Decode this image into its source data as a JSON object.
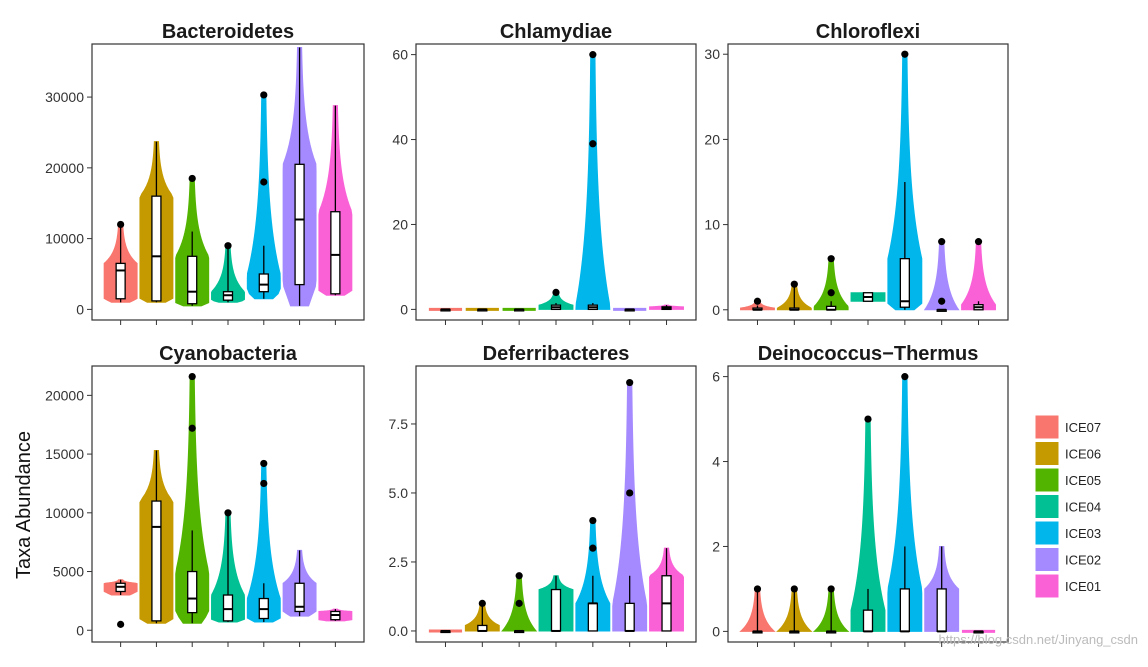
{
  "ylabel": "Taxa Abundance",
  "watermark": "https://blog.csdn.net/Jinyang_csdn",
  "groups": [
    "ICE07",
    "ICE06",
    "ICE05",
    "ICE04",
    "ICE03",
    "ICE02",
    "ICE01"
  ],
  "legend": [
    {
      "label": "ICE07",
      "color": "#F8766D"
    },
    {
      "label": "ICE06",
      "color": "#C49A00"
    },
    {
      "label": "ICE05",
      "color": "#53B400"
    },
    {
      "label": "ICE04",
      "color": "#00C094"
    },
    {
      "label": "ICE03",
      "color": "#00B6EB"
    },
    {
      "label": "ICE02",
      "color": "#A58AFF"
    },
    {
      "label": "ICE01",
      "color": "#FB61D7"
    }
  ],
  "chart_data": [
    {
      "type": "violin",
      "title": "Bacteroidetes",
      "ylim": [
        -1500,
        37500
      ],
      "yticks": [
        0,
        10000,
        20000,
        30000
      ],
      "ytick_labels": [
        "0",
        "10000",
        "20000",
        "30000"
      ],
      "series": [
        {
          "name": "ICE07",
          "min": 1000,
          "q1": 1500,
          "median": 5500,
          "q3": 6500,
          "max": 12000,
          "outliers": [
            12000
          ]
        },
        {
          "name": "ICE06",
          "min": 1000,
          "q1": 1200,
          "median": 7500,
          "q3": 16000,
          "max": 23700,
          "outliers": []
        },
        {
          "name": "ICE05",
          "min": 500,
          "q1": 800,
          "median": 2500,
          "q3": 7500,
          "max": 11000,
          "outliers": [
            18500
          ]
        },
        {
          "name": "ICE04",
          "min": 1000,
          "q1": 1300,
          "median": 2000,
          "q3": 2500,
          "max": 9000,
          "outliers": [
            9000
          ]
        },
        {
          "name": "ICE03",
          "min": 1500,
          "q1": 2500,
          "median": 3500,
          "q3": 5000,
          "max": 9000,
          "outliers": [
            18000,
            30300
          ]
        },
        {
          "name": "ICE02",
          "min": 500,
          "q1": 3500,
          "median": 12700,
          "q3": 20500,
          "max": 37000,
          "outliers": []
        },
        {
          "name": "ICE01",
          "min": 2000,
          "q1": 2200,
          "median": 7700,
          "q3": 13800,
          "max": 28800,
          "outliers": []
        }
      ]
    },
    {
      "type": "violin",
      "title": "Chlamydiae",
      "ylim": [
        -2.5,
        62.5
      ],
      "yticks": [
        0,
        20,
        40,
        60
      ],
      "ytick_labels": [
        "0",
        "20",
        "40",
        "60"
      ],
      "series": [
        {
          "name": "ICE07",
          "min": 0,
          "q1": 0,
          "median": 0,
          "q3": 0,
          "max": 0,
          "outliers": []
        },
        {
          "name": "ICE06",
          "min": 0,
          "q1": 0,
          "median": 0,
          "q3": 0,
          "max": 0,
          "outliers": []
        },
        {
          "name": "ICE05",
          "min": 0,
          "q1": 0,
          "median": 0,
          "q3": 0,
          "max": 0,
          "outliers": []
        },
        {
          "name": "ICE04",
          "min": 0,
          "q1": 0,
          "median": 0.5,
          "q3": 1,
          "max": 1.5,
          "outliers": [
            4
          ]
        },
        {
          "name": "ICE03",
          "min": 0,
          "q1": 0,
          "median": 0.5,
          "q3": 1,
          "max": 1.5,
          "outliers": [
            39,
            60
          ]
        },
        {
          "name": "ICE02",
          "min": 0,
          "q1": 0,
          "median": 0,
          "q3": 0,
          "max": 0,
          "outliers": []
        },
        {
          "name": "ICE01",
          "min": 0,
          "q1": 0,
          "median": 0.3,
          "q3": 0.6,
          "max": 1,
          "outliers": []
        }
      ]
    },
    {
      "type": "violin",
      "title": "Chloroflexi",
      "ylim": [
        -1.2,
        31.2
      ],
      "yticks": [
        0,
        10,
        20,
        30
      ],
      "ytick_labels": [
        "0",
        "10",
        "20",
        "30"
      ],
      "series": [
        {
          "name": "ICE07",
          "min": 0,
          "q1": 0,
          "median": 0,
          "q3": 0.2,
          "max": 0.5,
          "outliers": [
            1
          ]
        },
        {
          "name": "ICE06",
          "min": 0,
          "q1": 0,
          "median": 0,
          "q3": 0.2,
          "max": 3,
          "outliers": [
            3
          ]
        },
        {
          "name": "ICE05",
          "min": 0,
          "q1": 0,
          "median": 0,
          "q3": 0.4,
          "max": 1,
          "outliers": [
            2,
            6
          ]
        },
        {
          "name": "ICE04",
          "min": 1,
          "q1": 1,
          "median": 1.5,
          "q3": 2,
          "max": 2,
          "outliers": []
        },
        {
          "name": "ICE03",
          "min": 0,
          "q1": 0.3,
          "median": 1,
          "q3": 6,
          "max": 15,
          "outliers": [
            30
          ]
        },
        {
          "name": "ICE02",
          "min": 0,
          "q1": 0,
          "median": 0,
          "q3": 0,
          "max": 0,
          "outliers": [
            1,
            8
          ]
        },
        {
          "name": "ICE01",
          "min": 0,
          "q1": 0,
          "median": 0.3,
          "q3": 0.6,
          "max": 1,
          "outliers": [
            8
          ]
        }
      ]
    },
    {
      "type": "violin",
      "title": "Cyanobacteria",
      "ylim": [
        -1000,
        22500
      ],
      "yticks": [
        0,
        5000,
        10000,
        15000,
        20000
      ],
      "ytick_labels": [
        "0",
        "5000",
        "10000",
        "15000",
        "20000"
      ],
      "series": [
        {
          "name": "ICE07",
          "min": 3000,
          "q1": 3300,
          "median": 3700,
          "q3": 4000,
          "max": 4300,
          "outliers": [
            500
          ]
        },
        {
          "name": "ICE06",
          "min": 600,
          "q1": 800,
          "median": 8800,
          "q3": 11000,
          "max": 15300,
          "outliers": []
        },
        {
          "name": "ICE05",
          "min": 600,
          "q1": 1500,
          "median": 2700,
          "q3": 5000,
          "max": 8500,
          "outliers": [
            17200,
            21600
          ]
        },
        {
          "name": "ICE04",
          "min": 700,
          "q1": 800,
          "median": 1800,
          "q3": 3000,
          "max": 10000,
          "outliers": [
            10000
          ]
        },
        {
          "name": "ICE03",
          "min": 700,
          "q1": 1000,
          "median": 1800,
          "q3": 2700,
          "max": 4000,
          "outliers": [
            12500,
            14200
          ]
        },
        {
          "name": "ICE02",
          "min": 1200,
          "q1": 1600,
          "median": 2000,
          "q3": 4000,
          "max": 6800,
          "outliers": []
        },
        {
          "name": "ICE01",
          "min": 800,
          "q1": 900,
          "median": 1300,
          "q3": 1600,
          "max": 1800,
          "outliers": []
        }
      ]
    },
    {
      "type": "violin",
      "title": "Deferribacteres",
      "ylim": [
        -0.4,
        9.6
      ],
      "yticks": [
        0,
        2.5,
        5,
        7.5
      ],
      "ytick_labels": [
        "0.0",
        "2.5",
        "5.0",
        "7.5"
      ],
      "series": [
        {
          "name": "ICE07",
          "min": 0,
          "q1": 0,
          "median": 0,
          "q3": 0,
          "max": 0,
          "outliers": []
        },
        {
          "name": "ICE06",
          "min": 0,
          "q1": 0,
          "median": 0,
          "q3": 0.2,
          "max": 1,
          "outliers": [
            1
          ]
        },
        {
          "name": "ICE05",
          "min": 0,
          "q1": 0,
          "median": 0,
          "q3": 0,
          "max": 0,
          "outliers": [
            1,
            2
          ]
        },
        {
          "name": "ICE04",
          "min": 0,
          "q1": 0,
          "median": 0,
          "q3": 1.5,
          "max": 2,
          "outliers": []
        },
        {
          "name": "ICE03",
          "min": 0,
          "q1": 0,
          "median": 1,
          "q3": 1,
          "max": 2,
          "outliers": [
            3,
            4
          ]
        },
        {
          "name": "ICE02",
          "min": 0,
          "q1": 0,
          "median": 0,
          "q3": 1,
          "max": 2,
          "outliers": [
            5,
            9
          ]
        },
        {
          "name": "ICE01",
          "min": 0,
          "q1": 0,
          "median": 1,
          "q3": 2,
          "max": 3,
          "outliers": []
        }
      ]
    },
    {
      "type": "violin",
      "title": "Deinococcus−Thermus",
      "ylim": [
        -0.25,
        6.25
      ],
      "yticks": [
        0,
        2,
        4,
        6
      ],
      "ytick_labels": [
        "0",
        "2",
        "4",
        "6"
      ],
      "series": [
        {
          "name": "ICE07",
          "min": 0,
          "q1": 0,
          "median": 0,
          "q3": 0,
          "max": 1,
          "outliers": [
            1
          ]
        },
        {
          "name": "ICE06",
          "min": 0,
          "q1": 0,
          "median": 0,
          "q3": 0,
          "max": 1,
          "outliers": [
            1
          ]
        },
        {
          "name": "ICE05",
          "min": 0,
          "q1": 0,
          "median": 0,
          "q3": 0,
          "max": 1,
          "outliers": [
            1
          ]
        },
        {
          "name": "ICE04",
          "min": 0,
          "q1": 0,
          "median": 0,
          "q3": 0.5,
          "max": 1,
          "outliers": [
            5
          ]
        },
        {
          "name": "ICE03",
          "min": 0,
          "q1": 0,
          "median": 0,
          "q3": 1,
          "max": 2,
          "outliers": [
            6
          ]
        },
        {
          "name": "ICE02",
          "min": 0,
          "q1": 0,
          "median": 0,
          "q3": 1,
          "max": 2,
          "outliers": []
        },
        {
          "name": "ICE01",
          "min": 0,
          "q1": 0,
          "median": 0,
          "q3": 0,
          "max": 0,
          "outliers": []
        }
      ]
    }
  ]
}
